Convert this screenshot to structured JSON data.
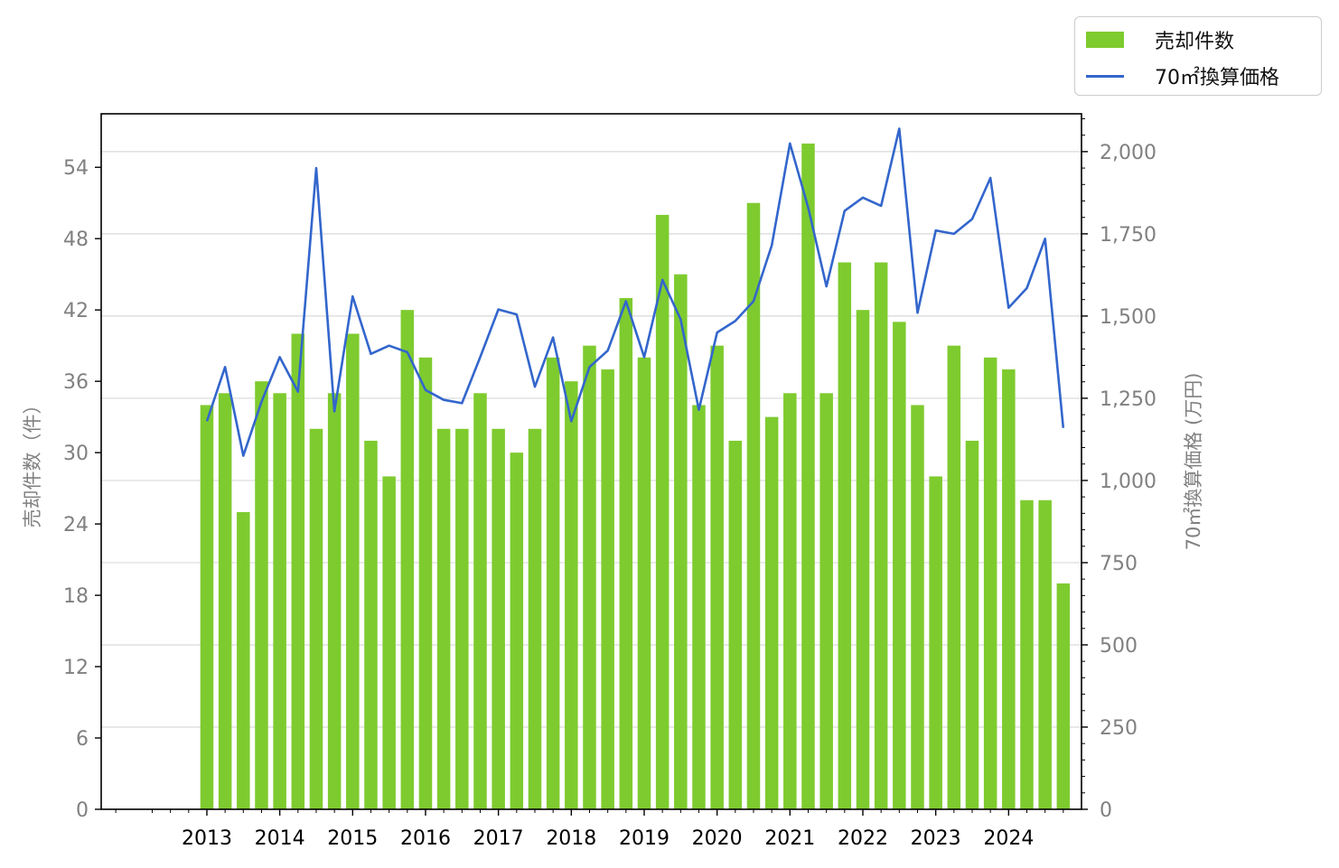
{
  "chart_data": {
    "type": "bar+line",
    "x": [
      2013.0,
      2013.25,
      2013.5,
      2013.75,
      2014.0,
      2014.25,
      2014.5,
      2014.75,
      2015.0,
      2015.25,
      2015.5,
      2015.75,
      2016.0,
      2016.25,
      2016.5,
      2016.75,
      2017.0,
      2017.25,
      2017.5,
      2017.75,
      2018.0,
      2018.25,
      2018.5,
      2018.75,
      2019.0,
      2019.25,
      2019.5,
      2019.75,
      2020.0,
      2020.25,
      2020.5,
      2020.75,
      2021.0,
      2021.25,
      2021.5,
      2021.75,
      2022.0,
      2022.25,
      2022.5,
      2022.75,
      2023.0,
      2023.25,
      2023.5,
      2023.75,
      2024.0,
      2024.25,
      2024.5,
      2024.75
    ],
    "x_ticks": [
      "2013",
      "2014",
      "2015",
      "2016",
      "2017",
      "2018",
      "2019",
      "2020",
      "2021",
      "2022",
      "2023",
      "2024"
    ],
    "xlim": [
      2011.55,
      2025.0
    ],
    "series": [
      {
        "name": "売却件数",
        "type": "bar",
        "axis": "left",
        "color": "#7ecb2f",
        "values": [
          34,
          35,
          25,
          36,
          35,
          40,
          32,
          35,
          40,
          31,
          28,
          42,
          38,
          32,
          32,
          35,
          32,
          30,
          32,
          38,
          36,
          39,
          37,
          43,
          38,
          50,
          45,
          34,
          39,
          31,
          51,
          33,
          35,
          56,
          35,
          46,
          42,
          46,
          41,
          34,
          28,
          39,
          31,
          38,
          37,
          26,
          26,
          19
        ]
      },
      {
        "name": "70㎡換算価格",
        "type": "line",
        "axis": "right",
        "color": "#3366cc",
        "values": [
          1180,
          1345,
          1075,
          1240,
          1375,
          1270,
          1950,
          1210,
          1560,
          1385,
          1410,
          1390,
          1275,
          1245,
          1235,
          1375,
          1520,
          1505,
          1285,
          1435,
          1180,
          1345,
          1395,
          1545,
          1375,
          1610,
          1490,
          1215,
          1450,
          1485,
          1545,
          1715,
          2025,
          1830,
          1590,
          1820,
          1860,
          1835,
          2070,
          1510,
          1760,
          1750,
          1795,
          1920,
          1525,
          1585,
          1735,
          1160
        ]
      }
    ],
    "left_axis": {
      "label": "売却件数（件）",
      "ylim": [
        0,
        58.5
      ],
      "ticks": [
        "0",
        "6",
        "12",
        "18",
        "24",
        "30",
        "36",
        "42",
        "48",
        "54"
      ]
    },
    "right_axis": {
      "label": "70㎡換算価格 (万円)",
      "ylim": [
        0,
        2115
      ],
      "ticks": [
        "0",
        "250",
        "500",
        "750",
        "1,000",
        "1,250",
        "1,500",
        "1,750",
        "2,000"
      ]
    },
    "grid": "horizontal at right-axis ticks",
    "legend": "top-right outside"
  }
}
